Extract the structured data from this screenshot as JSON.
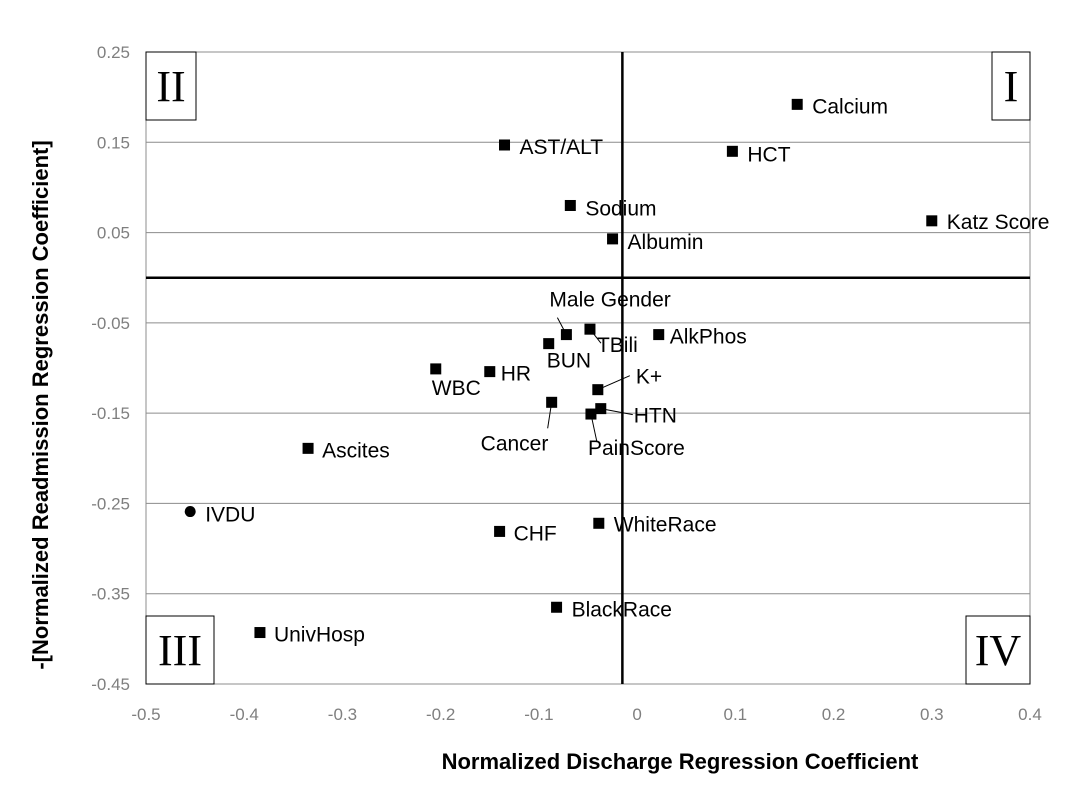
{
  "chart_data": {
    "type": "scatter",
    "xlabel": "Normalized Discharge Regression Coefficient",
    "ylabel": "-[Normalized Readmission Regression Coefficient]",
    "xlim": [
      -0.5,
      0.4
    ],
    "ylim": [
      -0.45,
      0.25
    ],
    "x_ticks": [
      "-0.5",
      "-0.4",
      "-0.3",
      "-0.2",
      "-0.1",
      "0",
      "0.1",
      "0.2",
      "0.3",
      "0.4"
    ],
    "y_ticks": [
      "0.25",
      "0.15",
      "0.05",
      "-0.05",
      "-0.15",
      "-0.25",
      "-0.35",
      "-0.45"
    ],
    "grid": "horizontal",
    "reference_lines": {
      "x": -0.015,
      "y": 0.0
    },
    "quadrants": [
      {
        "label": "I",
        "position": "top-right"
      },
      {
        "label": "II",
        "position": "top-left"
      },
      {
        "label": "III",
        "position": "bottom-left"
      },
      {
        "label": "IV",
        "position": "bottom-right"
      }
    ],
    "points": [
      {
        "label": "Calcium",
        "x": 0.163,
        "y": 0.192,
        "marker": "square"
      },
      {
        "label": "AST/ALT",
        "x": -0.135,
        "y": 0.147,
        "marker": "square"
      },
      {
        "label": "HCT",
        "x": 0.097,
        "y": 0.14,
        "marker": "square"
      },
      {
        "label": "Sodium",
        "x": -0.068,
        "y": 0.08,
        "marker": "square"
      },
      {
        "label": "Katz Score",
        "x": 0.3,
        "y": 0.063,
        "marker": "square"
      },
      {
        "label": "Albumin",
        "x": -0.025,
        "y": 0.043,
        "marker": "square"
      },
      {
        "label": "Male Gender",
        "x": -0.072,
        "y": -0.063,
        "marker": "square"
      },
      {
        "label": "TBili",
        "x": -0.048,
        "y": -0.057,
        "marker": "square"
      },
      {
        "label": "AlkPhos",
        "x": 0.022,
        "y": -0.063,
        "marker": "square"
      },
      {
        "label": "BUN",
        "x": -0.09,
        "y": -0.073,
        "marker": "square"
      },
      {
        "label": "WBC",
        "x": -0.205,
        "y": -0.101,
        "marker": "square"
      },
      {
        "label": "HR",
        "x": -0.15,
        "y": -0.104,
        "marker": "square"
      },
      {
        "label": "K+",
        "x": -0.04,
        "y": -0.124,
        "marker": "square"
      },
      {
        "label": "Cancer",
        "x": -0.087,
        "y": -0.138,
        "marker": "square"
      },
      {
        "label": "HTN",
        "x": -0.037,
        "y": -0.145,
        "marker": "square"
      },
      {
        "label": "PainScore",
        "x": -0.047,
        "y": -0.151,
        "marker": "square"
      },
      {
        "label": "Ascites",
        "x": -0.335,
        "y": -0.189,
        "marker": "square"
      },
      {
        "label": "IVDU",
        "x": -0.455,
        "y": -0.259,
        "marker": "circle"
      },
      {
        "label": "WhiteRace",
        "x": -0.039,
        "y": -0.272,
        "marker": "square"
      },
      {
        "label": "CHF",
        "x": -0.14,
        "y": -0.281,
        "marker": "square"
      },
      {
        "label": "BlackRace",
        "x": -0.082,
        "y": -0.365,
        "marker": "square"
      },
      {
        "label": "UnivHosp",
        "x": -0.384,
        "y": -0.393,
        "marker": "square"
      }
    ]
  }
}
